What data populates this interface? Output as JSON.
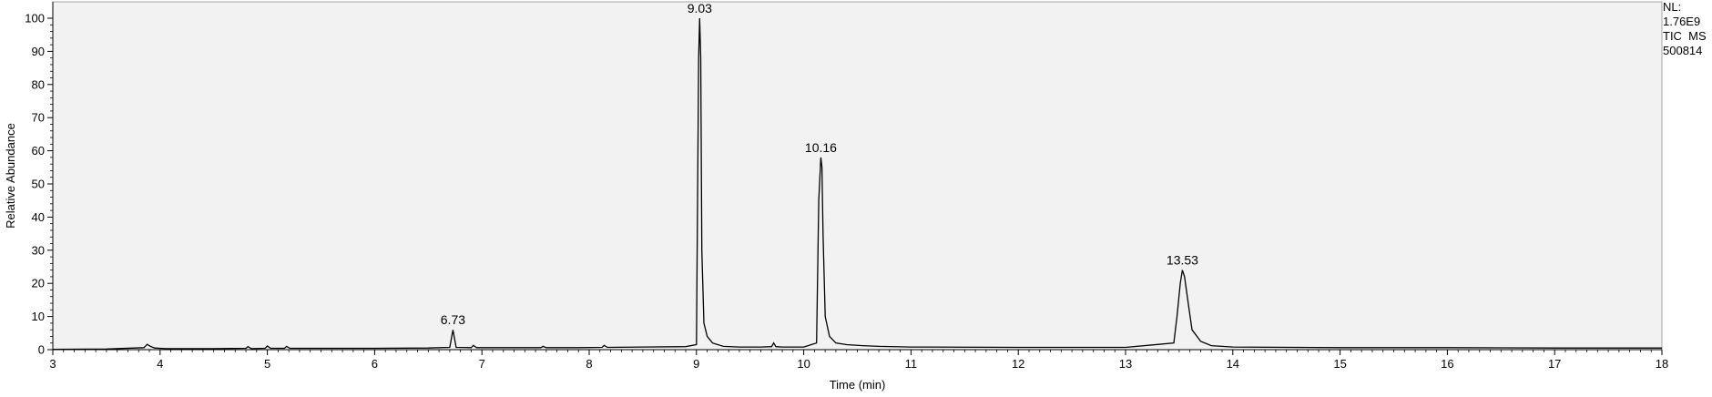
{
  "chart_data": {
    "type": "line",
    "title": "",
    "xlabel": "Time (min)",
    "ylabel": "Relative Abundance",
    "xlim": [
      3,
      18
    ],
    "ylim": [
      0,
      100
    ],
    "x_ticks": [
      3,
      4,
      5,
      6,
      7,
      8,
      9,
      10,
      11,
      12,
      13,
      14,
      15,
      16,
      17,
      18
    ],
    "y_ticks": [
      0,
      10,
      20,
      30,
      40,
      50,
      60,
      70,
      80,
      90,
      100
    ],
    "grid": false,
    "series": [
      {
        "color": "#000000",
        "x": [
          3.0,
          3.5,
          3.85,
          3.88,
          3.91,
          3.95,
          4.05,
          4.5,
          4.8,
          4.82,
          4.85,
          4.98,
          5.0,
          5.03,
          5.16,
          5.18,
          5.21,
          5.5,
          6.0,
          6.5,
          6.7,
          6.73,
          6.76,
          6.9,
          6.92,
          6.95,
          7.3,
          7.55,
          7.57,
          7.6,
          7.9,
          8.12,
          8.14,
          8.17,
          8.5,
          8.9,
          9.0,
          9.02,
          9.03,
          9.04,
          9.05,
          9.07,
          9.1,
          9.15,
          9.25,
          9.4,
          9.6,
          9.7,
          9.72,
          9.74,
          9.8,
          10.0,
          10.12,
          10.14,
          10.16,
          10.17,
          10.18,
          10.2,
          10.24,
          10.3,
          10.4,
          10.55,
          10.7,
          11.0,
          12.0,
          13.0,
          13.45,
          13.48,
          13.51,
          13.53,
          13.55,
          13.58,
          13.62,
          13.7,
          13.8,
          14.0,
          15.0,
          16.0,
          17.0,
          18.0
        ],
        "y": [
          0.1,
          0.2,
          0.6,
          1.6,
          1.0,
          0.5,
          0.3,
          0.3,
          0.4,
          0.9,
          0.3,
          0.4,
          1.1,
          0.4,
          0.4,
          1.0,
          0.4,
          0.4,
          0.4,
          0.5,
          0.7,
          6.0,
          0.7,
          0.6,
          1.3,
          0.6,
          0.6,
          0.6,
          1.0,
          0.6,
          0.6,
          0.7,
          1.3,
          0.7,
          0.8,
          0.9,
          1.5,
          88.0,
          100.0,
          88.0,
          30.0,
          8.0,
          4.0,
          2.0,
          1.0,
          0.8,
          0.8,
          0.9,
          2.0,
          0.9,
          0.8,
          0.8,
          2.0,
          45.0,
          58.0,
          55.0,
          35.0,
          10.0,
          4.0,
          2.0,
          1.5,
          1.2,
          1.0,
          0.8,
          0.7,
          0.7,
          2.0,
          10.0,
          20.0,
          24.0,
          22.0,
          15.0,
          6.0,
          2.5,
          1.2,
          0.8,
          0.6,
          0.6,
          0.5,
          0.5
        ]
      }
    ],
    "annotations": [
      {
        "x": 6.73,
        "y": 6.0,
        "text": "6.73"
      },
      {
        "x": 9.03,
        "y": 100.0,
        "text": "9.03"
      },
      {
        "x": 10.16,
        "y": 58.0,
        "text": "10.16"
      },
      {
        "x": 13.53,
        "y": 24.0,
        "text": "13.53"
      }
    ]
  },
  "info_box": {
    "nl_label": "NL:",
    "nl_value": "1.76E9",
    "scan_filter": "TIC  MS",
    "sample_name": "500814"
  }
}
